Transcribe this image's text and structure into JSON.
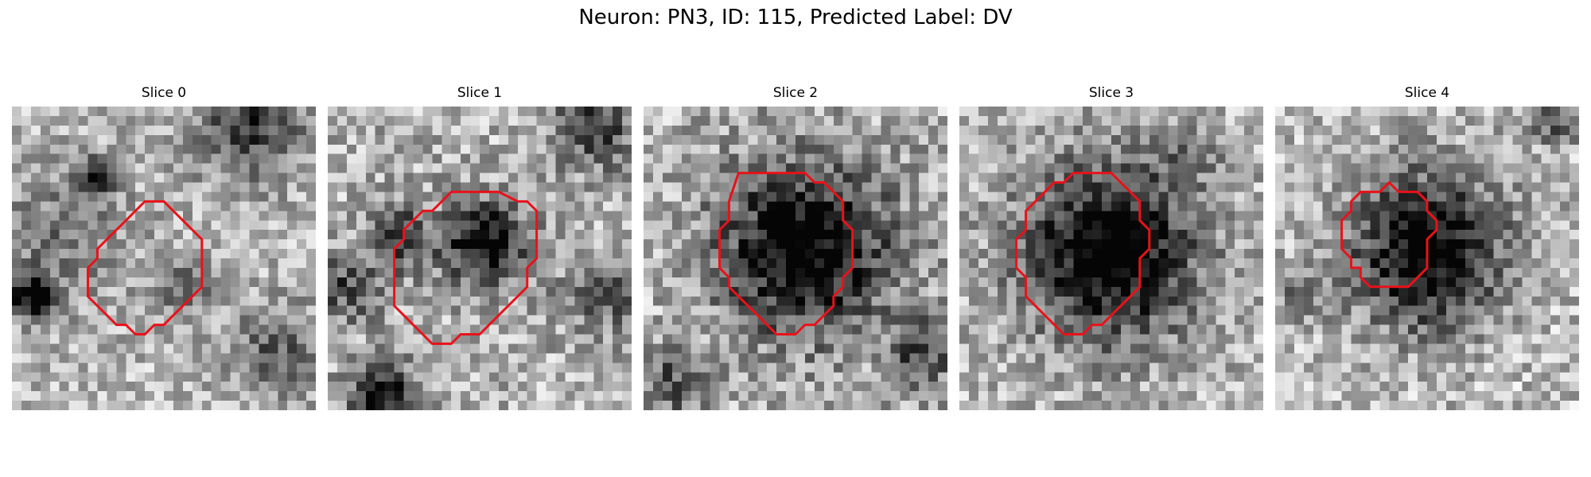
{
  "title": "Neuron: PN3, ID: 115, Predicted Label: DV",
  "slices": [
    {
      "label": "Slice 0"
    },
    {
      "label": "Slice 1"
    },
    {
      "label": "Slice 2"
    },
    {
      "label": "Slice 3"
    },
    {
      "label": "Slice 4"
    }
  ],
  "colors": {
    "contour": "#e8121a"
  }
}
